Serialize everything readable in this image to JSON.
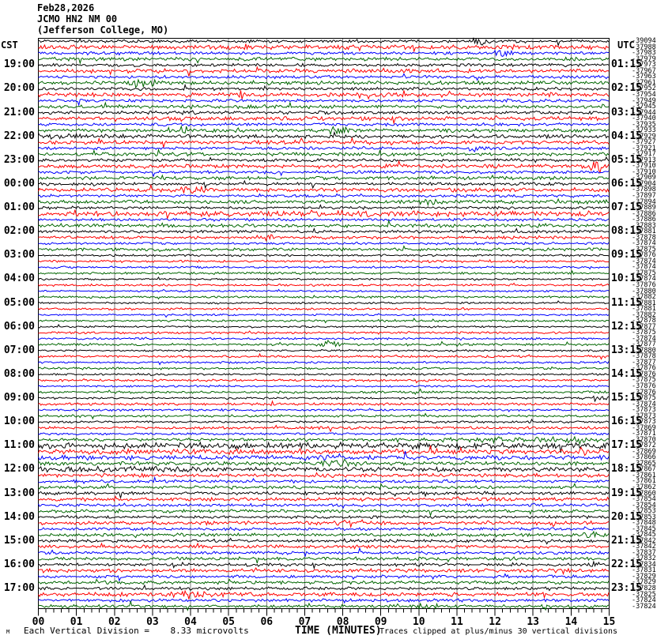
{
  "header": {
    "date": "Feb28,2026",
    "station": "JCMO HN2 NM 00",
    "location": "(Jefferson College, MO)"
  },
  "axes": {
    "left_corner_label": "CST",
    "right_corner_label": "UTC",
    "x_title": "TIME (MINUTES)",
    "x_ticks": [
      "00",
      "01",
      "02",
      "03",
      "04",
      "05",
      "06",
      "07",
      "08",
      "09",
      "10",
      "11",
      "12",
      "13",
      "14",
      "15"
    ]
  },
  "footer": {
    "division_label": "Each Vertical Division =",
    "division_value": "8.33 microvolts",
    "clip_note": "Traces clipped at plus/minus 30 vertical divisions",
    "watermark": "M"
  },
  "chart_data": {
    "type": "line",
    "subtype": "helicorder-seismogram",
    "minutes_per_line": 15,
    "x_range": [
      0,
      15
    ],
    "grid": "vertical-minute-lines",
    "trace_color_cycle": [
      "#000000",
      "#ff0000",
      "#0000ff",
      "#006600"
    ],
    "grid_color": "#7f7f7f",
    "hours_left_cst": [
      "19:00",
      "20:00",
      "21:00",
      "22:00",
      "23:00",
      "00:00",
      "01:00",
      "02:00",
      "03:00",
      "04:00",
      "05:00",
      "06:00",
      "07:00",
      "08:00",
      "09:00",
      "10:00",
      "11:00",
      "12:00",
      "13:00",
      "14:00",
      "15:00",
      "16:00",
      "17:00"
    ],
    "hours_right_utc": [
      "01:15",
      "02:15",
      "03:15",
      "04:15",
      "05:15",
      "06:15",
      "07:15",
      "08:15",
      "09:15",
      "10:15",
      "11:15",
      "12:15",
      "13:15",
      "14:15",
      "15:15",
      "16:15",
      "17:15",
      "18:15",
      "19:15",
      "20:15",
      "21:15",
      "22:15",
      "23:15"
    ],
    "trace_offsets": [
      "-39094",
      "-37988",
      "-37983",
      "-37979",
      "-37973",
      "-37967",
      "-37963",
      "-37961",
      "-37952",
      "-37954",
      "-37949",
      "-37945",
      "-37944",
      "-37940",
      "-37935",
      "-37933",
      "-37929",
      "-37927",
      "-37921",
      "-37917",
      "-37913",
      "-37910",
      "-37910",
      "-37909",
      "-37904",
      "-37898",
      "-37897",
      "-37894",
      "-37889",
      "-37886",
      "-37886",
      "-37883",
      "-37881",
      "-37878",
      "-37874",
      "-37875",
      "-37876",
      "-37874",
      "-37874",
      "-37875",
      "-37874",
      "-37876",
      "-37880",
      "-37882",
      "-37881",
      "-37881",
      "-37882",
      "-37878",
      "-37877",
      "-37875",
      "-37874",
      "-37877",
      "-37880",
      "-37878",
      "-37877",
      "-37876",
      "-37876",
      "-37875",
      "-37876",
      "-37876",
      "-37875",
      "-37874",
      "-37873",
      "-37873",
      "-37873",
      "-37869",
      "-37871",
      "-37870",
      "-37872",
      "-37869",
      "-37866",
      "-37865",
      "-37867",
      "-37861",
      "-37861",
      "-37862",
      "-37860",
      "-37854",
      "-37854",
      "-37853",
      "-37853",
      "-37848",
      "-37845",
      "-37845",
      "-37842",
      "-37842",
      "-37837",
      "-37832",
      "-37834",
      "-37831",
      "-37829",
      "-37829",
      "-37828",
      "-37825",
      "-37824",
      "-37824"
    ],
    "trace_noise_amplitudes": [
      1.5,
      2.2,
      1.5,
      1.8,
      1.5,
      2.0,
      1.5,
      1.8,
      1.5,
      2.2,
      1.5,
      1.8,
      1.6,
      2.0,
      1.5,
      1.8,
      1.9,
      2.0,
      1.6,
      1.8,
      1.5,
      2.0,
      1.5,
      1.8,
      1.5,
      2.0,
      1.5,
      1.8,
      1.4,
      2.6,
      1.4,
      1.8,
      1.5,
      1.7,
      1.2,
      1.5,
      1.0,
      1.2,
      1.0,
      1.2,
      0.9,
      1.1,
      0.9,
      1.1,
      0.9,
      1.1,
      0.9,
      1.1,
      0.9,
      1.1,
      1.0,
      1.2,
      0.9,
      1.2,
      1.0,
      1.2,
      1.0,
      1.2,
      1.0,
      1.2,
      1.0,
      1.3,
      1.0,
      1.3,
      1.1,
      1.4,
      1.1,
      1.5,
      3.2,
      2.6,
      2.3,
      1.9,
      2.2,
      1.8,
      1.5,
      1.6,
      1.7,
      1.8,
      1.4,
      1.6,
      1.5,
      1.9,
      1.5,
      1.7,
      1.5,
      1.8,
      1.5,
      1.7,
      1.6,
      1.8,
      1.5,
      1.7,
      1.5,
      2.0,
      1.5,
      1.7
    ],
    "events": [
      {
        "trace": 0,
        "minute": 11.6,
        "amp": 5,
        "width": 0.35
      },
      {
        "trace": 2,
        "minute": 12.2,
        "amp": 4,
        "width": 0.4
      },
      {
        "trace": 7,
        "minute": 2.8,
        "amp": 5,
        "width": 0.4
      },
      {
        "trace": 9,
        "minute": 5.4,
        "amp": 7,
        "width": 0.15
      },
      {
        "trace": 12,
        "minute": 3.9,
        "amp": 3,
        "width": 0.5
      },
      {
        "trace": 15,
        "minute": 3.7,
        "amp": 4,
        "width": 0.4
      },
      {
        "trace": 15,
        "minute": 7.9,
        "amp": 5,
        "width": 0.4
      },
      {
        "trace": 16,
        "minute": 1.0,
        "amp": 2.5,
        "width": 1.0
      },
      {
        "trace": 18,
        "minute": 11.5,
        "amp": 4,
        "width": 0.25
      },
      {
        "trace": 21,
        "minute": 14.65,
        "amp": 9,
        "width": 0.2
      },
      {
        "trace": 25,
        "minute": 4.0,
        "amp": 5,
        "width": 0.4
      },
      {
        "trace": 27,
        "minute": 10.3,
        "amp": 3,
        "width": 0.4
      },
      {
        "trace": 29,
        "minute": 7.5,
        "amp": 2,
        "width": 3.0
      },
      {
        "trace": 33,
        "minute": 6.0,
        "amp": 3,
        "width": 0.3
      },
      {
        "trace": 51,
        "minute": 7.7,
        "amp": 4,
        "width": 0.4
      },
      {
        "trace": 60,
        "minute": 14.8,
        "amp": 3,
        "width": 0.25
      },
      {
        "trace": 67,
        "minute": 12.5,
        "amp": 2.5,
        "width": 2.5
      },
      {
        "trace": 67,
        "minute": 14.3,
        "amp": 4,
        "width": 0.3
      },
      {
        "trace": 69,
        "minute": 14.35,
        "amp": 6,
        "width": 0.15
      },
      {
        "trace": 70,
        "minute": 7.6,
        "amp": 3,
        "width": 0.8
      },
      {
        "trace": 71,
        "minute": 7.9,
        "amp": 5,
        "width": 0.4
      },
      {
        "trace": 72,
        "minute": 2.0,
        "amp": 2.5,
        "width": 2.0
      },
      {
        "trace": 75,
        "minute": 9.0,
        "amp": 3,
        "width": 0.3
      },
      {
        "trace": 81,
        "minute": 8.2,
        "amp": 4,
        "width": 0.4
      },
      {
        "trace": 81,
        "minute": 13.55,
        "amp": 5,
        "width": 0.12
      },
      {
        "trace": 83,
        "minute": 14.5,
        "amp": 4,
        "width": 0.35
      },
      {
        "trace": 88,
        "minute": 14.6,
        "amp": 4,
        "width": 0.25
      },
      {
        "trace": 93,
        "minute": 4.2,
        "amp": 3,
        "width": 0.8
      },
      {
        "trace": 95,
        "minute": 10.3,
        "amp": 2.5,
        "width": 0.4
      }
    ]
  }
}
